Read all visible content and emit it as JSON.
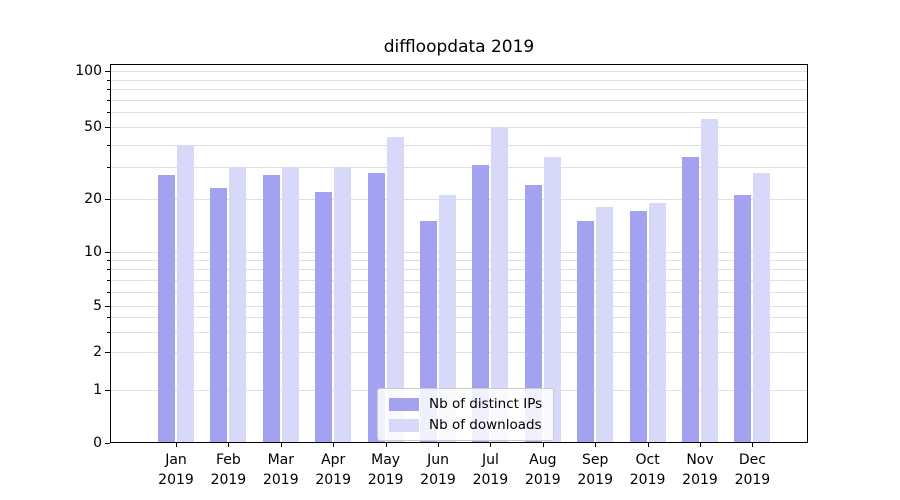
{
  "chart_data": {
    "type": "bar",
    "title": "diffloopdata 2019",
    "categories": [
      "Jan",
      "Feb",
      "Mar",
      "Apr",
      "May",
      "Jun",
      "Jul",
      "Aug",
      "Sep",
      "Oct",
      "Nov",
      "Dec"
    ],
    "year_label": "2019",
    "series": [
      {
        "name": "Nb of distinct IPs",
        "color": "#a2a2f0",
        "values": [
          27,
          23,
          27,
          22,
          28,
          15,
          31,
          24,
          15,
          17,
          34,
          21
        ]
      },
      {
        "name": "Nb of downloads",
        "color": "#d8d8f8",
        "values": [
          40,
          30,
          30,
          30,
          44,
          21,
          50,
          34,
          18,
          19,
          55,
          28
        ]
      }
    ],
    "y_axis": {
      "scale": "symlog",
      "ticks": [
        0,
        1,
        2,
        5,
        10,
        20,
        50,
        100
      ],
      "minor_ticks": [
        3,
        4,
        6,
        7,
        8,
        9,
        30,
        40,
        60,
        70,
        80,
        90
      ],
      "ylim": [
        0,
        110
      ]
    },
    "x_axis": {
      "label": ""
    },
    "legend": {
      "position": "lower-center"
    },
    "grid": true,
    "colors": {
      "background": "#ffffff",
      "gridline": "#e0e0e0",
      "axis": "#000000"
    }
  }
}
